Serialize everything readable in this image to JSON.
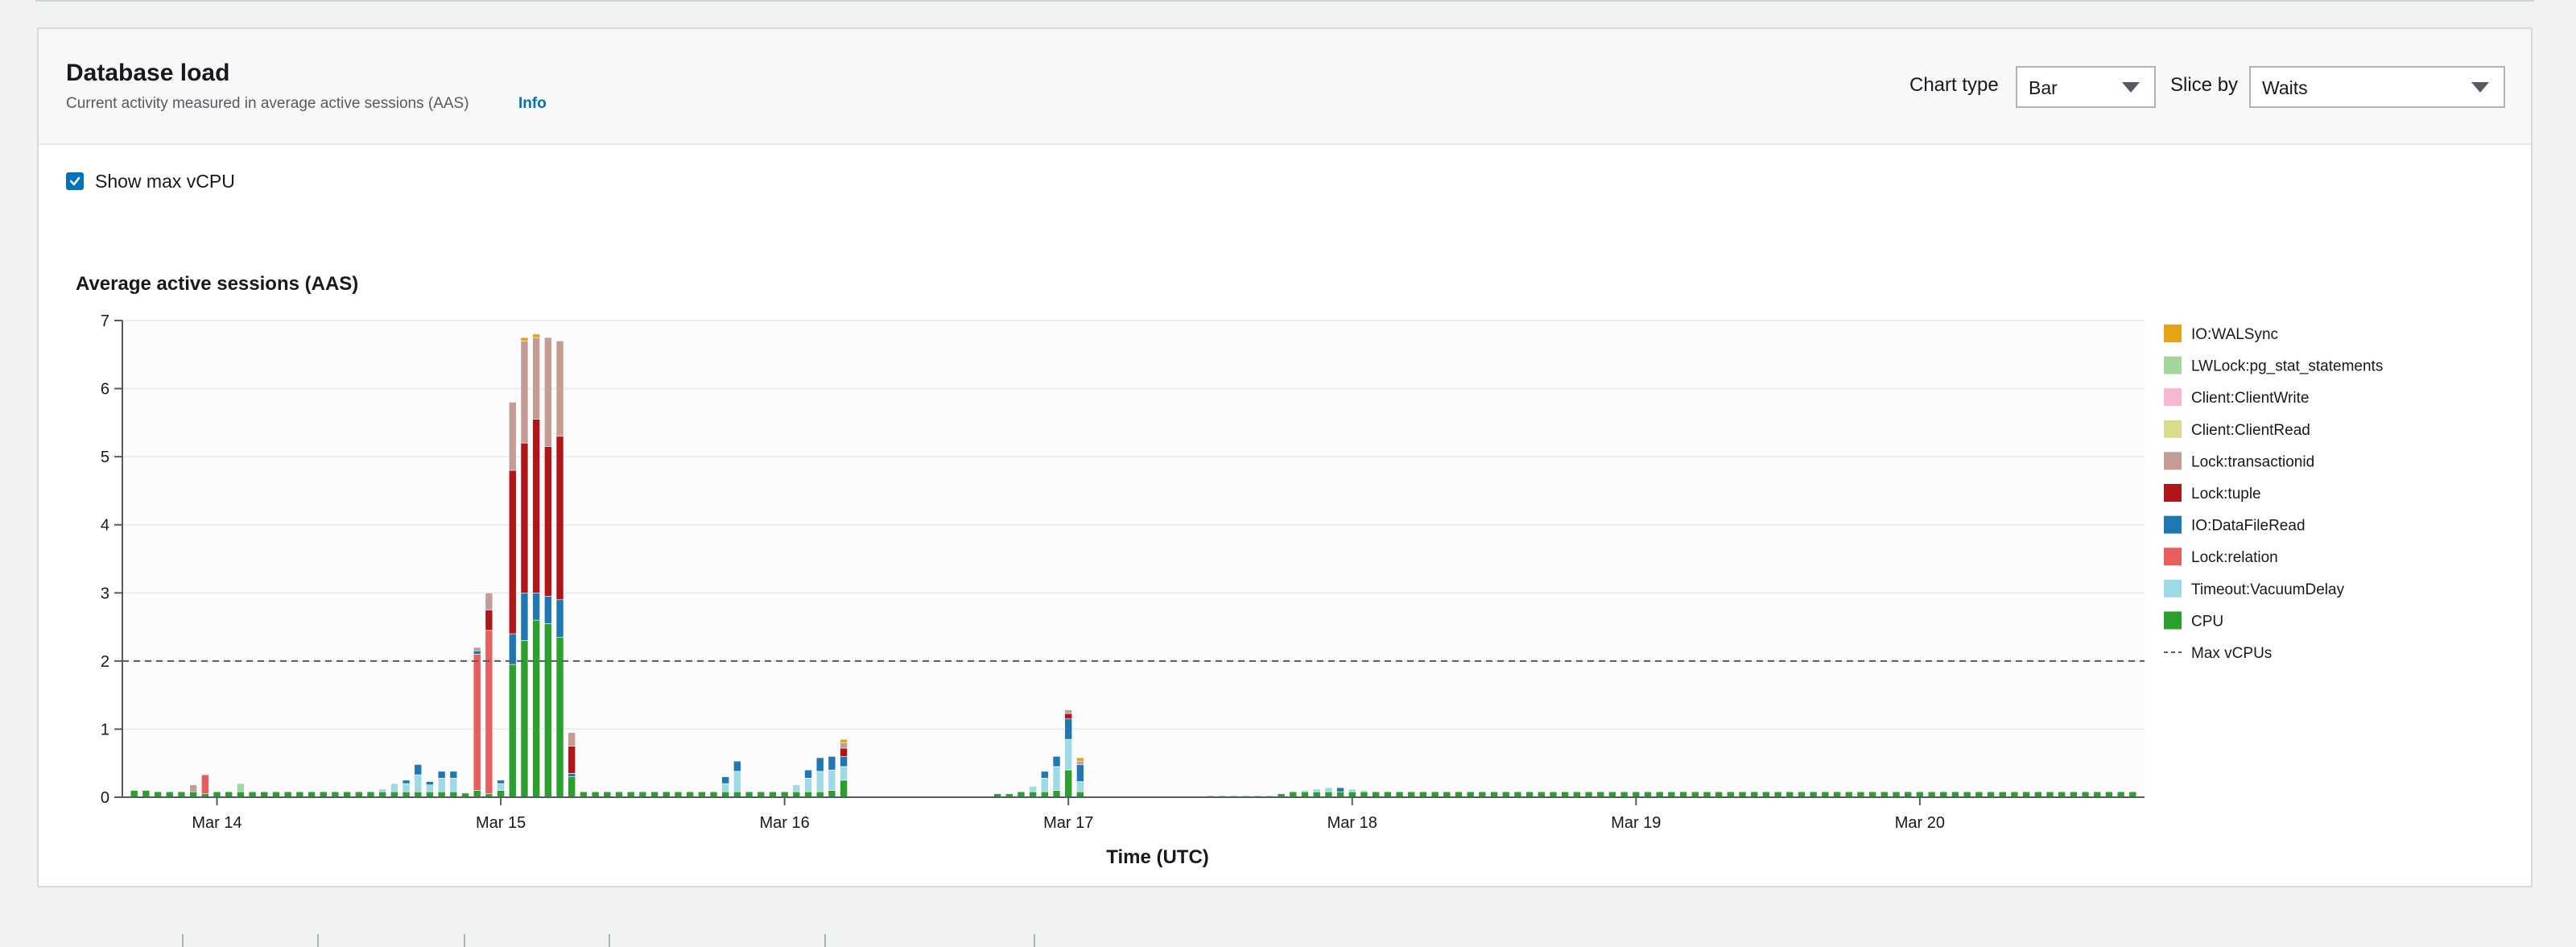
{
  "panel": {
    "title": "Database load",
    "subtitle": "Current activity measured in average active sessions (AAS)",
    "info_label": "Info"
  },
  "controls": {
    "chart_type_label": "Chart type",
    "chart_type_value": "Bar",
    "slice_by_label": "Slice by",
    "slice_by_value": "Waits",
    "show_max_vcpu_label": "Show max vCPU",
    "show_max_vcpu_checked": true
  },
  "chart_data": {
    "type": "bar",
    "stacked": true,
    "title": "Average active sessions (AAS)",
    "xlabel": "Time (UTC)",
    "ylabel": "",
    "ylim": [
      0,
      7
    ],
    "yticks": [
      "0",
      "1",
      "2",
      "3",
      "4",
      "5",
      "6",
      "7"
    ],
    "xtick_labels": [
      "Mar 14",
      "Mar 15",
      "Mar 16",
      "Mar 17",
      "Mar 18",
      "Mar 19",
      "Mar 20"
    ],
    "grid": true,
    "legend_position": "right",
    "reference_line": {
      "name": "Max vCPUs",
      "value": 2,
      "style": "dashed",
      "color": "#545b64"
    },
    "series_order_bottom_to_top": [
      "CPU",
      "Timeout:VacuumDelay",
      "Lock:relation",
      "IO:DataFileRead",
      "Lock:tuple",
      "Lock:transactionid",
      "Client:ClientRead",
      "Client:ClientWrite",
      "LWLock:pg_stat_statements",
      "IO:WALSync"
    ],
    "series": [
      {
        "name": "IO:WALSync",
        "color": "#e8a215"
      },
      {
        "name": "LWLock:pg_stat_statements",
        "color": "#a5d59c"
      },
      {
        "name": "Client:ClientWrite",
        "color": "#f7b6d2"
      },
      {
        "name": "Client:ClientRead",
        "color": "#dbdb8d"
      },
      {
        "name": "Lock:transactionid",
        "color": "#c49c94"
      },
      {
        "name": "Lock:tuple",
        "color": "#b0151a"
      },
      {
        "name": "IO:DataFileRead",
        "color": "#1f77b4"
      },
      {
        "name": "Lock:relation",
        "color": "#e85d5d"
      },
      {
        "name": "Timeout:VacuumDelay",
        "color": "#9edae5"
      },
      {
        "name": "CPU",
        "color": "#2ca02c"
      }
    ],
    "bars": [
      {
        "x": "Mar 13 17:00",
        "CPU": 0.1
      },
      {
        "x": "Mar 13 18:00",
        "CPU": 0.1
      },
      {
        "x": "Mar 13 19:00",
        "CPU": 0.08
      },
      {
        "x": "Mar 13 20:00",
        "CPU": 0.08
      },
      {
        "x": "Mar 13 21:00",
        "CPU": 0.08
      },
      {
        "x": "Mar 13 22:00",
        "CPU": 0.08,
        "Lock:transactionid": 0.1
      },
      {
        "x": "Mar 13 23:00",
        "CPU": 0.05,
        "Lock:relation": 0.28
      },
      {
        "x": "Mar 14 00:00",
        "CPU": 0.08
      },
      {
        "x": "Mar 14 01:00",
        "CPU": 0.08
      },
      {
        "x": "Mar 14 02:00",
        "CPU": 0.08,
        "LWLock:pg_stat_statements": 0.12
      },
      {
        "x": "Mar 14 03:00",
        "CPU": 0.08
      },
      {
        "x": "Mar 14 04:00",
        "CPU": 0.08
      },
      {
        "x": "Mar 14 05:00",
        "CPU": 0.08
      },
      {
        "x": "Mar 14 06:00",
        "CPU": 0.08
      },
      {
        "x": "Mar 14 07:00",
        "CPU": 0.08
      },
      {
        "x": "Mar 14 08:00",
        "CPU": 0.08
      },
      {
        "x": "Mar 14 09:00",
        "CPU": 0.08
      },
      {
        "x": "Mar 14 10:00",
        "CPU": 0.08
      },
      {
        "x": "Mar 14 11:00",
        "CPU": 0.08
      },
      {
        "x": "Mar 14 12:00",
        "CPU": 0.08
      },
      {
        "x": "Mar 14 13:00",
        "CPU": 0.08
      },
      {
        "x": "Mar 14 14:00",
        "CPU": 0.08,
        "Timeout:VacuumDelay": 0.04
      },
      {
        "x": "Mar 14 15:00",
        "CPU": 0.08,
        "Timeout:VacuumDelay": 0.12
      },
      {
        "x": "Mar 14 16:00",
        "CPU": 0.08,
        "Timeout:VacuumDelay": 0.12,
        "IO:DataFileRead": 0.05
      },
      {
        "x": "Mar 14 17:00",
        "CPU": 0.08,
        "Timeout:VacuumDelay": 0.25,
        "IO:DataFileRead": 0.15
      },
      {
        "x": "Mar 14 18:00",
        "CPU": 0.08,
        "Timeout:VacuumDelay": 0.1,
        "IO:DataFileRead": 0.05
      },
      {
        "x": "Mar 14 19:00",
        "CPU": 0.08,
        "Timeout:VacuumDelay": 0.2,
        "IO:DataFileRead": 0.1
      },
      {
        "x": "Mar 14 20:00",
        "CPU": 0.08,
        "Timeout:VacuumDelay": 0.2,
        "IO:DataFileRead": 0.1
      },
      {
        "x": "Mar 14 21:00",
        "CPU": 0.06
      },
      {
        "x": "Mar 14 22:00",
        "CPU": 0.1,
        "Lock:relation": 2.0,
        "IO:DataFileRead": 0.05,
        "Lock:transactionid": 0.05
      },
      {
        "x": "Mar 14 23:00",
        "CPU": 0.05,
        "Lock:relation": 2.4,
        "Lock:tuple": 0.3,
        "Lock:transactionid": 0.25
      },
      {
        "x": "Mar 15 00:00",
        "CPU": 0.1,
        "Timeout:VacuumDelay": 0.1,
        "IO:DataFileRead": 0.05
      },
      {
        "x": "Mar 15 01:00",
        "CPU": 1.95,
        "IO:DataFileRead": 0.45,
        "Lock:tuple": 2.4,
        "Lock:transactionid": 1.0
      },
      {
        "x": "Mar 15 02:00",
        "CPU": 2.3,
        "IO:DataFileRead": 0.7,
        "Lock:tuple": 2.2,
        "Lock:transactionid": 1.5,
        "IO:WALSync": 0.05
      },
      {
        "x": "Mar 15 03:00",
        "CPU": 2.6,
        "IO:DataFileRead": 0.4,
        "Lock:tuple": 2.55,
        "Lock:transactionid": 1.2,
        "IO:WALSync": 0.05
      },
      {
        "x": "Mar 15 04:00",
        "CPU": 2.55,
        "IO:DataFileRead": 0.4,
        "Lock:tuple": 2.2,
        "Lock:transactionid": 1.6
      },
      {
        "x": "Mar 15 05:00",
        "CPU": 2.35,
        "IO:DataFileRead": 0.55,
        "Lock:tuple": 2.4,
        "Lock:transactionid": 1.4
      },
      {
        "x": "Mar 15 06:00",
        "CPU": 0.3,
        "IO:DataFileRead": 0.05,
        "Lock:tuple": 0.4,
        "Lock:transactionid": 0.2
      },
      {
        "x": "Mar 15 07:00",
        "CPU": 0.08
      },
      {
        "x": "Mar 15 08:00",
        "CPU": 0.08
      },
      {
        "x": "Mar 15 09:00",
        "CPU": 0.08
      },
      {
        "x": "Mar 15 10:00",
        "CPU": 0.08
      },
      {
        "x": "Mar 15 11:00",
        "CPU": 0.08
      },
      {
        "x": "Mar 15 12:00",
        "CPU": 0.08
      },
      {
        "x": "Mar 15 13:00",
        "CPU": 0.08
      },
      {
        "x": "Mar 15 14:00",
        "CPU": 0.08
      },
      {
        "x": "Mar 15 15:00",
        "CPU": 0.08
      },
      {
        "x": "Mar 15 16:00",
        "CPU": 0.08
      },
      {
        "x": "Mar 15 17:00",
        "CPU": 0.08
      },
      {
        "x": "Mar 15 18:00",
        "CPU": 0.08
      },
      {
        "x": "Mar 15 19:00",
        "CPU": 0.08,
        "Timeout:VacuumDelay": 0.12,
        "IO:DataFileRead": 0.1
      },
      {
        "x": "Mar 15 20:00",
        "CPU": 0.08,
        "Timeout:VacuumDelay": 0.3,
        "IO:DataFileRead": 0.15
      },
      {
        "x": "Mar 15 21:00",
        "CPU": 0.08
      },
      {
        "x": "Mar 15 22:00",
        "CPU": 0.08
      },
      {
        "x": "Mar 15 23:00",
        "CPU": 0.08
      },
      {
        "x": "Mar 16 00:00",
        "CPU": 0.08
      },
      {
        "x": "Mar 16 01:00",
        "CPU": 0.08,
        "Timeout:VacuumDelay": 0.1
      },
      {
        "x": "Mar 16 02:00",
        "CPU": 0.08,
        "Timeout:VacuumDelay": 0.2,
        "IO:DataFileRead": 0.12
      },
      {
        "x": "Mar 16 03:00",
        "CPU": 0.08,
        "Timeout:VacuumDelay": 0.3,
        "IO:DataFileRead": 0.2
      },
      {
        "x": "Mar 16 04:00",
        "CPU": 0.1,
        "Timeout:VacuumDelay": 0.3,
        "IO:DataFileRead": 0.2
      },
      {
        "x": "Mar 16 05:00",
        "CPU": 0.25,
        "Timeout:VacuumDelay": 0.2,
        "IO:DataFileRead": 0.15,
        "Lock:tuple": 0.12,
        "Lock:transactionid": 0.08,
        "IO:WALSync": 0.05
      }
    ],
    "bars_part2": [
      {
        "x": "Mar 16 18:00",
        "CPU": 0.05
      },
      {
        "x": "Mar 16 19:00",
        "CPU": 0.05
      },
      {
        "x": "Mar 16 20:00",
        "CPU": 0.08
      },
      {
        "x": "Mar 16 21:00",
        "CPU": 0.08,
        "Timeout:VacuumDelay": 0.08
      },
      {
        "x": "Mar 16 22:00",
        "CPU": 0.08,
        "Timeout:VacuumDelay": 0.2,
        "IO:DataFileRead": 0.1
      },
      {
        "x": "Mar 16 23:00",
        "CPU": 0.1,
        "Timeout:VacuumDelay": 0.35,
        "IO:DataFileRead": 0.15
      },
      {
        "x": "Mar 17 00:00",
        "CPU": 0.4,
        "Timeout:VacuumDelay": 0.45,
        "IO:DataFileRead": 0.3,
        "Lock:tuple": 0.08,
        "Lock:transactionid": 0.05
      },
      {
        "x": "Mar 17 01:00",
        "CPU": 0.08,
        "Timeout:VacuumDelay": 0.15,
        "IO:DataFileRead": 0.25,
        "Lock:transactionid": 0.05,
        "IO:WALSync": 0.05
      },
      {
        "x": "Mar 17 12:00",
        "CPU": 0.02
      },
      {
        "x": "Mar 17 13:00",
        "CPU": 0.02
      },
      {
        "x": "Mar 17 14:00",
        "CPU": 0.02
      },
      {
        "x": "Mar 17 15:00",
        "CPU": 0.02
      },
      {
        "x": "Mar 17 16:00",
        "CPU": 0.02
      },
      {
        "x": "Mar 17 17:00",
        "CPU": 0.02
      },
      {
        "x": "Mar 17 18:00",
        "CPU": 0.05
      },
      {
        "x": "Mar 17 19:00",
        "CPU": 0.08
      },
      {
        "x": "Mar 17 20:00",
        "CPU": 0.08,
        "Timeout:VacuumDelay": 0.02
      },
      {
        "x": "Mar 17 21:00",
        "CPU": 0.08,
        "Timeout:VacuumDelay": 0.04
      },
      {
        "x": "Mar 17 22:00",
        "CPU": 0.08,
        "Timeout:VacuumDelay": 0.06
      },
      {
        "x": "Mar 17 23:00",
        "CPU": 0.08,
        "IO:DataFileRead": 0.06
      },
      {
        "x": "Mar 18 00:00",
        "CPU": 0.08,
        "Timeout:VacuumDelay": 0.04
      },
      {
        "x": "Mar 18 01:00",
        "CPU": 0.08,
        "Timeout:VacuumDelay": 0.02
      }
    ],
    "baseline_after": {
      "from": "Mar 18 02:00",
      "to": "Mar 20 18:00",
      "CPU": 0.08
    }
  },
  "icons": {
    "checkbox": "check-icon",
    "chart_type_caret": "caret-down-icon",
    "slice_by_caret": "caret-down-icon"
  }
}
